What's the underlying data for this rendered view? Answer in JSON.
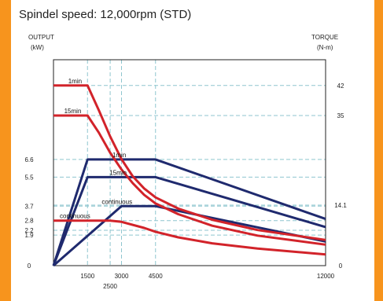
{
  "title": "Spindel speed: 12,000rpm (STD)",
  "left_axis": {
    "title": "OUTPUT",
    "unit": "(kW)"
  },
  "right_axis": {
    "title": "TORQUE",
    "unit": "(N-m)"
  },
  "colors": {
    "output": "#1f2a6e",
    "torque": "#d2232a",
    "grid": "#8fc6cf",
    "frame": "#222222"
  },
  "chart_data": {
    "type": "line",
    "title": "Spindel speed: 12,000rpm (STD)",
    "xlim": [
      0,
      12000
    ],
    "ylim_left_kW": [
      0,
      12.8
    ],
    "ylim_right_Nm": [
      0,
      48
    ],
    "x_ticks": [
      {
        "value": 1500,
        "label": "1500"
      },
      {
        "value": 2500,
        "label": "2500"
      },
      {
        "value": 3000,
        "label": "3000"
      },
      {
        "value": 4500,
        "label": "4500"
      },
      {
        "value": 12000,
        "label": "12000"
      }
    ],
    "left_ticks": [
      {
        "value": 0,
        "label": "0"
      },
      {
        "value": 1.9,
        "label": "1.9"
      },
      {
        "value": 2.2,
        "label": "2.2"
      },
      {
        "value": 2.8,
        "label": "2.8"
      },
      {
        "value": 3.7,
        "label": "3.7"
      },
      {
        "value": 5.5,
        "label": "5.5"
      },
      {
        "value": 6.6,
        "label": "6.6"
      }
    ],
    "right_ticks": [
      {
        "value": 0,
        "label": "0"
      },
      {
        "value": 14.1,
        "label": "14.1"
      },
      {
        "value": 35,
        "label": "35"
      },
      {
        "value": 42,
        "label": "42"
      }
    ],
    "series": [
      {
        "name": "1min",
        "axis": "left",
        "color": "#1f2a6e",
        "points": [
          [
            0,
            0
          ],
          [
            1500,
            6.6
          ],
          [
            4500,
            6.6
          ],
          [
            12000,
            2.9
          ]
        ]
      },
      {
        "name": "15min",
        "axis": "left",
        "color": "#1f2a6e",
        "points": [
          [
            0,
            0
          ],
          [
            1500,
            5.5
          ],
          [
            4500,
            5.5
          ],
          [
            12000,
            2.4
          ]
        ]
      },
      {
        "name": "continuous",
        "axis": "left",
        "color": "#1f2a6e",
        "points": [
          [
            0,
            0
          ],
          [
            3000,
            3.7
          ],
          [
            4500,
            3.7
          ],
          [
            12000,
            1.5
          ]
        ]
      },
      {
        "name": "1min",
        "axis": "right",
        "color": "#d2232a",
        "points": [
          [
            0,
            42
          ],
          [
            1500,
            42
          ],
          [
            2000,
            36.2
          ],
          [
            2500,
            30.1
          ],
          [
            3000,
            24.8
          ],
          [
            3500,
            20.8
          ],
          [
            4000,
            18
          ],
          [
            4500,
            15.9
          ],
          [
            5500,
            13.3
          ],
          [
            7000,
            10.7
          ],
          [
            9000,
            8.3
          ],
          [
            12000,
            6
          ]
        ]
      },
      {
        "name": "15min",
        "axis": "right",
        "color": "#d2232a",
        "points": [
          [
            0,
            35
          ],
          [
            1500,
            35
          ],
          [
            2000,
            31
          ],
          [
            2500,
            26.3
          ],
          [
            3000,
            22.4
          ],
          [
            3500,
            19.2
          ],
          [
            4000,
            16.5
          ],
          [
            4500,
            14.5
          ],
          [
            5500,
            12
          ],
          [
            7000,
            9.3
          ],
          [
            9000,
            7
          ],
          [
            12000,
            4.9
          ]
        ]
      },
      {
        "name": "continuous",
        "axis": "right",
        "color": "#d2232a",
        "points": [
          [
            0,
            10.5
          ],
          [
            2500,
            10.5
          ],
          [
            3000,
            10.2
          ],
          [
            4000,
            8.8
          ],
          [
            4500,
            7.9
          ],
          [
            5500,
            6.6
          ],
          [
            7000,
            5.2
          ],
          [
            9000,
            4
          ],
          [
            12000,
            2.6
          ]
        ]
      }
    ],
    "grid": true
  }
}
